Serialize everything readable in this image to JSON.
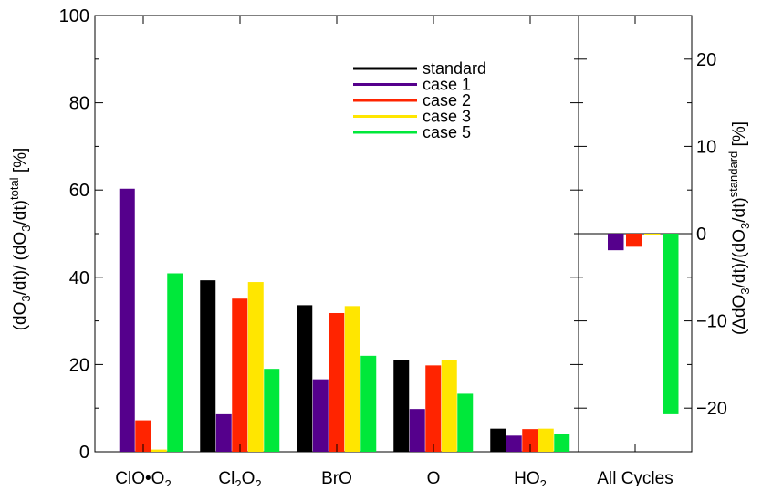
{
  "chart_data": [
    {
      "type": "bar",
      "categories": [
        "ClO•O₂",
        "Cl₂O₂",
        "BrO",
        "O",
        "HO₂"
      ],
      "category_labels": [
        {
          "base": "ClO•O",
          "sub": "2",
          "tail": ""
        },
        {
          "base": "Cl",
          "sub": "2",
          "tail": "O",
          "sub2": "2"
        },
        {
          "base": "BrO",
          "sub": "",
          "tail": ""
        },
        {
          "base": "O",
          "sub": "",
          "tail": ""
        },
        {
          "base": "HO",
          "sub": "2",
          "tail": ""
        }
      ],
      "series": [
        {
          "name": "standard",
          "color": "#000000",
          "values": [
            null,
            39.3,
            33.6,
            21.1,
            5.3
          ]
        },
        {
          "name": "case 1",
          "color": "#55008c",
          "values": [
            60.3,
            8.6,
            16.6,
            9.8,
            3.7
          ]
        },
        {
          "name": "case 2",
          "color": "#ff2400",
          "values": [
            7.2,
            35.1,
            31.8,
            19.8,
            5.2
          ]
        },
        {
          "name": "case 3",
          "color": "#ffe600",
          "values": [
            0.5,
            38.9,
            33.4,
            21.0,
            5.3
          ]
        },
        {
          "name": "case 5",
          "color": "#00e83a",
          "values": [
            40.9,
            19.0,
            22.0,
            13.3,
            4.0
          ]
        }
      ],
      "ylim": [
        0,
        100
      ],
      "yticks": [
        "0",
        "20",
        "40",
        "60",
        "80",
        "100"
      ],
      "ylabel": {
        "part1": "(dO",
        "sub1": "3",
        "part2": "/dt)/ (dO",
        "sub2": "3",
        "part3": "/dt)",
        "sup": "total",
        "part4": " [%]"
      }
    },
    {
      "type": "bar",
      "categories": [
        "All Cycles"
      ],
      "series": [
        {
          "name": "case 1",
          "color": "#55008c",
          "values": [
            -1.9
          ]
        },
        {
          "name": "case 2",
          "color": "#ff2400",
          "values": [
            -1.5
          ]
        },
        {
          "name": "case 3",
          "color": "#ffe600",
          "values": [
            -0.1
          ]
        },
        {
          "name": "case 5",
          "color": "#00e83a",
          "values": [
            -20.7
          ]
        }
      ],
      "ylim": [
        -25,
        25
      ],
      "yticks": [
        "−20",
        "−10",
        "0",
        "10",
        "20"
      ],
      "ylabel": {
        "part1": "(ΔdO",
        "sub1": "3",
        "part2": "/dt)/(dO",
        "sub2": "3",
        "part3": "/dt)",
        "sup": "standard",
        "part4": " [%]"
      }
    }
  ],
  "legend": {
    "placement": "top-right of left panel",
    "entries": [
      {
        "label": "standard",
        "color": "#000000"
      },
      {
        "label": "case 1",
        "color": "#55008c"
      },
      {
        "label": "case 2",
        "color": "#ff2400"
      },
      {
        "label": "case 3",
        "color": "#ffe600"
      },
      {
        "label": "case 5",
        "color": "#00e83a"
      }
    ]
  }
}
